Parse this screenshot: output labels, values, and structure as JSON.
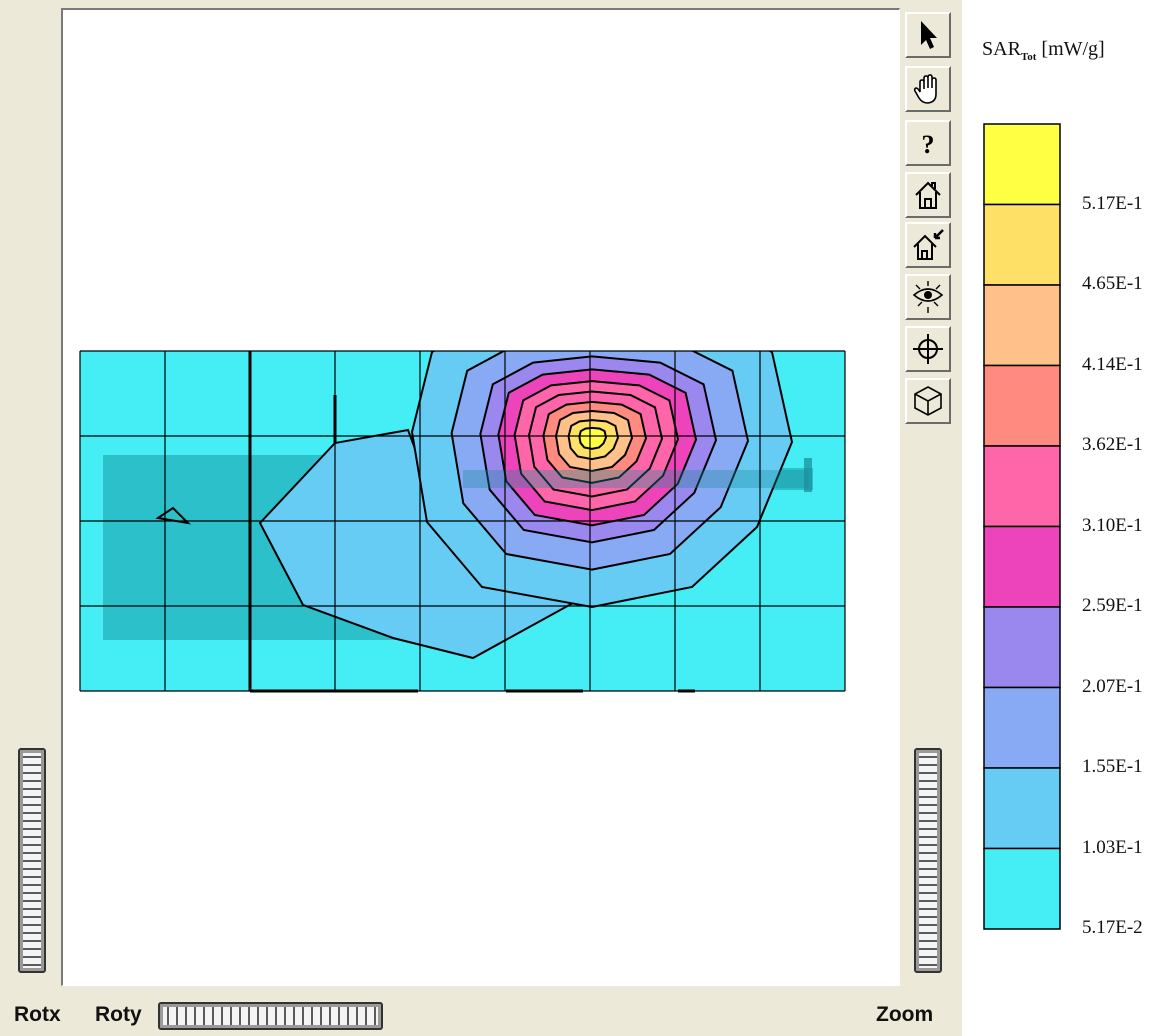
{
  "toolbar": {
    "tools": [
      {
        "name": "select-tool",
        "icon": "arrow-pointer-icon"
      },
      {
        "name": "pan-tool",
        "icon": "hand-icon"
      },
      {
        "name": "help-tool",
        "icon": "question-mark-icon"
      },
      {
        "name": "home-view-tool",
        "icon": "house-icon"
      },
      {
        "name": "set-home-tool",
        "icon": "house-arrow-icon"
      },
      {
        "name": "view-tool",
        "icon": "eye-icon"
      },
      {
        "name": "center-tool",
        "icon": "crosshair-icon"
      },
      {
        "name": "cube-view-tool",
        "icon": "cube-icon"
      }
    ]
  },
  "controls": {
    "rotx_label": "Rotx",
    "roty_label": "Roty",
    "zoom_label": "Zoom"
  },
  "legend": {
    "title_main": "SAR",
    "title_sub": "Tot",
    "title_unit": "[mW/g]",
    "colors": [
      "#ffff44",
      "#ffe066",
      "#ffc08a",
      "#ff8a80",
      "#ff66aa",
      "#ee44bb",
      "#9a88ee",
      "#88aaf4",
      "#66ccf4",
      "#44eef4"
    ],
    "tick_labels": [
      "5.17E-1",
      "4.65E-1",
      "4.14E-1",
      "3.62E-1",
      "3.10E-1",
      "2.59E-1",
      "2.07E-1",
      "1.55E-1",
      "1.03E-1",
      "5.17E-2"
    ]
  },
  "plot": {
    "background_color": "#44eef4",
    "grid_cols": 9,
    "grid_rows": 4,
    "peak_level_count": 10
  }
}
